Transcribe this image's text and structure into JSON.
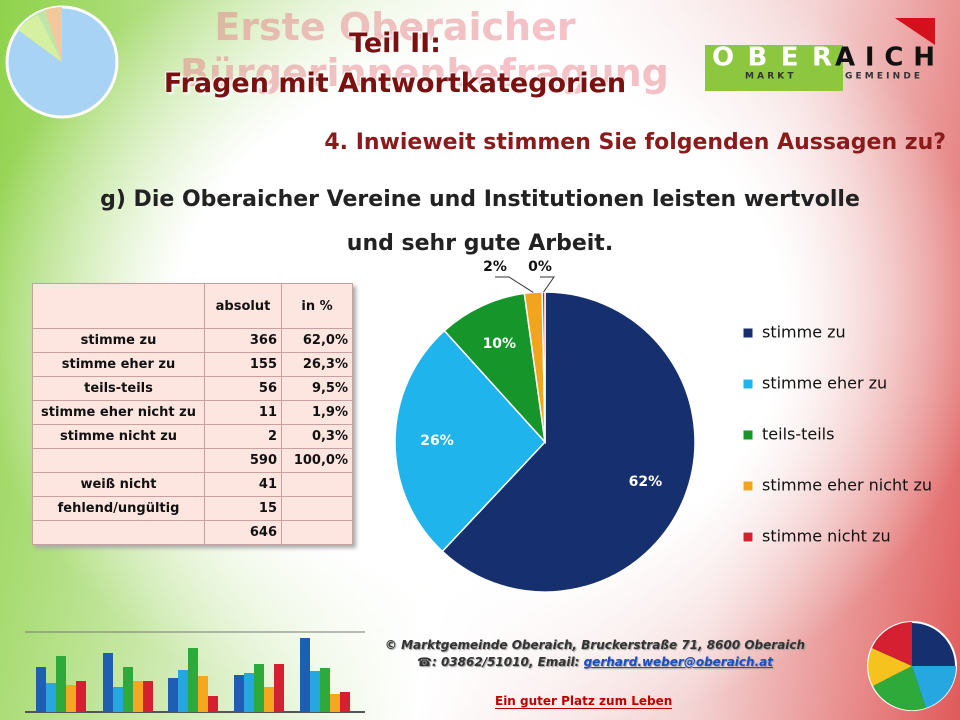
{
  "background_title": {
    "line1": "Erste Oberaicher",
    "line2": "Bürgerinnenbefragung"
  },
  "heading": {
    "line1": "Teil II:",
    "line2": "Fragen mit Antwortkategorien"
  },
  "logo": {
    "left": "OBER",
    "right": "AICH",
    "tagline_left": "M A R K T",
    "tagline_right": "G E M E I N D E"
  },
  "question": "4. Inwieweit stimmen Sie folgenden Aussagen zu?",
  "statement": {
    "line1": "g) Die Oberaicher Vereine und Institutionen leisten wertvolle",
    "line2": "und sehr gute Arbeit."
  },
  "table": {
    "header": [
      "absolut",
      "in %"
    ],
    "rows": [
      {
        "label": "stimme zu",
        "absolut": 366,
        "percent": "62,0%"
      },
      {
        "label": "stimme eher zu",
        "absolut": 155,
        "percent": "26,3%"
      },
      {
        "label": "teils-teils",
        "absolut": 56,
        "percent": "9,5%"
      },
      {
        "label": "stimme eher nicht zu",
        "absolut": 11,
        "percent": "1,9%"
      },
      {
        "label": "stimme nicht zu",
        "absolut": 2,
        "percent": "0,3%"
      },
      {
        "absolut": 590,
        "percent": "100,0%"
      },
      {
        "label": "weiß nicht",
        "absolut": 41
      },
      {
        "label": "fehlend/ungültig",
        "absolut": 15
      },
      {
        "absolut": 646
      }
    ]
  },
  "chart_data": {
    "type": "pie",
    "categories": [
      "stimme zu",
      "stimme eher zu",
      "teils-teils",
      "stimme eher nicht zu",
      "stimme nicht zu"
    ],
    "values": [
      62.0,
      26.3,
      9.5,
      1.9,
      0.3
    ],
    "value_labels": [
      "62%",
      "26%",
      "10%",
      "2%",
      "0%"
    ],
    "colors": [
      "#16306f",
      "#1fb4ec",
      "#16962a",
      "#f2a51c",
      "#d42030"
    ],
    "legend": "right"
  },
  "footer": {
    "address": "© Marktgemeinde Oberaich, Bruckerstraße 71, 8600 Oberaich",
    "phone": "☎: 03862/51010, Email:",
    "email": "gerhard.weber@oberaich.at",
    "slogan": "Ein guter Platz zum Leben"
  }
}
